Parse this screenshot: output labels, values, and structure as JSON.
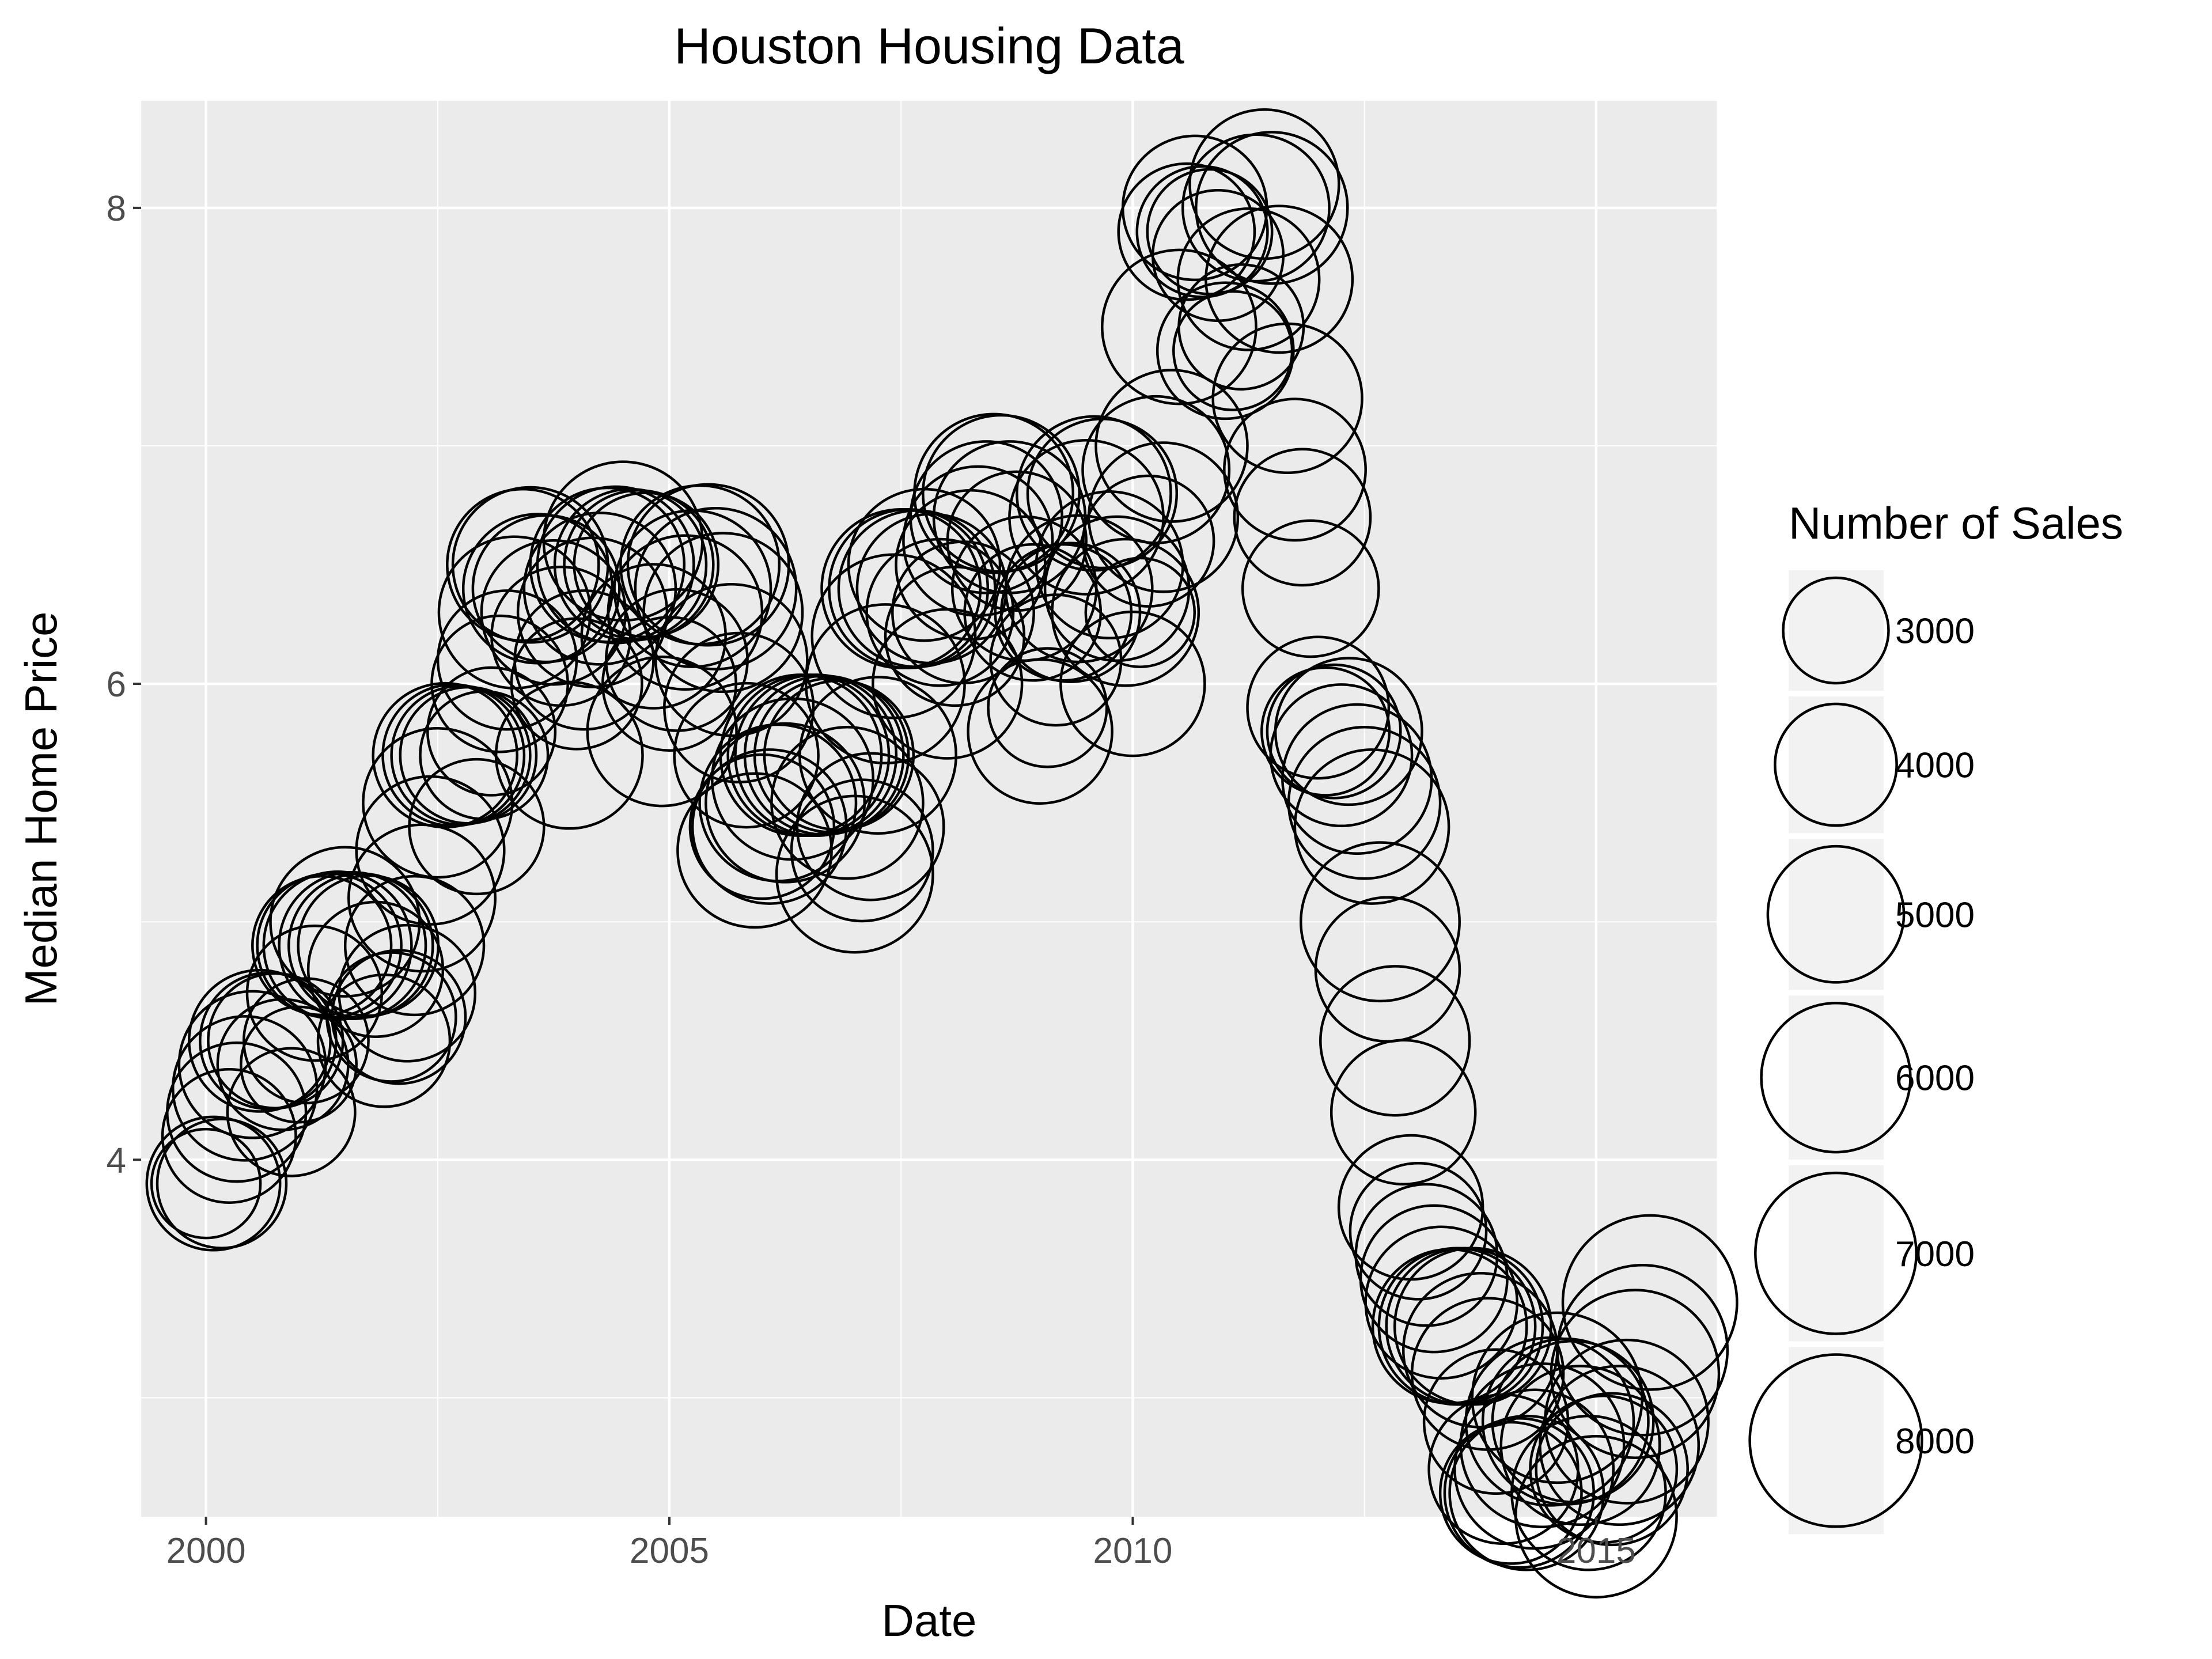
{
  "chart_data": {
    "type": "scatter",
    "title": "Houston Housing Data",
    "xlabel": "Date",
    "ylabel": "Median Home Price",
    "xlim": [
      1999.3,
      2016.3
    ],
    "ylim": [
      2.5,
      8.45
    ],
    "x_ticks": [
      2000,
      2005,
      2010,
      2015
    ],
    "x_tick_labels": [
      "2000",
      "2005",
      "2010",
      "2015"
    ],
    "y_ticks": [
      4,
      6,
      8
    ],
    "y_tick_labels": [
      "4",
      "6",
      "8"
    ],
    "grid": true,
    "panel_background": "#ebebeb",
    "grid_color": "#ffffff",
    "point_color": "#000000",
    "legend": {
      "title": "Number of Sales",
      "position": "right",
      "entries": [
        {
          "label": "3000",
          "value": 3000
        },
        {
          "label": "4000",
          "value": 4000
        },
        {
          "label": "5000",
          "value": 5000
        },
        {
          "label": "6000",
          "value": 6000
        },
        {
          "label": "7000",
          "value": 7000
        },
        {
          "label": "8000",
          "value": 8000
        }
      ]
    },
    "columns": [
      "date",
      "median_price",
      "sales"
    ],
    "points": [
      [
        2000.0,
        3.9,
        3200
      ],
      [
        2000.08,
        3.9,
        4800
      ],
      [
        2000.17,
        3.9,
        4500
      ],
      [
        2000.25,
        4.1,
        4800
      ],
      [
        2000.33,
        4.2,
        5200
      ],
      [
        2000.42,
        4.3,
        5600
      ],
      [
        2000.5,
        4.4,
        5800
      ],
      [
        2000.58,
        4.5,
        5400
      ],
      [
        2000.67,
        4.5,
        5000
      ],
      [
        2000.75,
        4.5,
        4900
      ],
      [
        2000.83,
        4.4,
        4600
      ],
      [
        2000.92,
        4.2,
        4400
      ],
      [
        2001.0,
        4.4,
        3600
      ],
      [
        2001.08,
        4.5,
        4200
      ],
      [
        2001.17,
        4.7,
        4900
      ],
      [
        2001.25,
        4.9,
        5200
      ],
      [
        2001.33,
        4.9,
        5600
      ],
      [
        2001.42,
        4.9,
        5900
      ],
      [
        2001.5,
        5.0,
        6000
      ],
      [
        2001.58,
        4.9,
        5800
      ],
      [
        2001.67,
        4.9,
        5600
      ],
      [
        2001.75,
        4.9,
        5300
      ],
      [
        2001.83,
        4.8,
        4900
      ],
      [
        2001.92,
        4.5,
        4700
      ],
      [
        2002.0,
        4.6,
        4500
      ],
      [
        2002.08,
        4.6,
        4800
      ],
      [
        2002.17,
        4.7,
        5000
      ],
      [
        2002.25,
        4.9,
        5200
      ],
      [
        2002.33,
        5.1,
        5800
      ],
      [
        2002.42,
        5.3,
        5900
      ],
      [
        2002.5,
        5.5,
        6000
      ],
      [
        2002.58,
        5.7,
        5600
      ],
      [
        2002.67,
        5.7,
        5400
      ],
      [
        2002.75,
        5.7,
        5200
      ],
      [
        2002.83,
        5.7,
        5000
      ],
      [
        2002.92,
        5.4,
        4900
      ],
      [
        2003.0,
        5.7,
        4400
      ],
      [
        2003.08,
        5.8,
        4400
      ],
      [
        2003.17,
        6.0,
        5000
      ],
      [
        2003.25,
        6.1,
        5200
      ],
      [
        2003.33,
        6.3,
        6200
      ],
      [
        2003.42,
        6.5,
        6200
      ],
      [
        2003.5,
        6.5,
        6500
      ],
      [
        2003.58,
        6.4,
        6000
      ],
      [
        2003.67,
        6.4,
        5800
      ],
      [
        2003.75,
        6.3,
        5600
      ],
      [
        2003.83,
        6.2,
        5200
      ],
      [
        2003.92,
        5.7,
        5800
      ],
      [
        2004.0,
        6.0,
        4600
      ],
      [
        2004.08,
        6.1,
        5200
      ],
      [
        2004.17,
        6.3,
        6000
      ],
      [
        2004.25,
        6.4,
        6200
      ],
      [
        2004.33,
        6.5,
        6400
      ],
      [
        2004.42,
        6.5,
        6600
      ],
      [
        2004.5,
        6.6,
        6800
      ],
      [
        2004.58,
        6.5,
        6200
      ],
      [
        2004.67,
        6.5,
        6000
      ],
      [
        2004.75,
        6.5,
        5600
      ],
      [
        2004.83,
        6.2,
        5600
      ],
      [
        2004.92,
        5.8,
        6000
      ],
      [
        2005.0,
        6.0,
        4800
      ],
      [
        2005.08,
        6.1,
        5400
      ],
      [
        2005.17,
        6.3,
        6400
      ],
      [
        2005.25,
        6.4,
        6600
      ],
      [
        2005.33,
        6.5,
        6800
      ],
      [
        2005.42,
        6.5,
        7000
      ],
      [
        2005.5,
        6.4,
        7000
      ],
      [
        2005.58,
        6.3,
        6800
      ],
      [
        2005.67,
        6.1,
        6200
      ],
      [
        2005.75,
        5.9,
        6000
      ],
      [
        2005.83,
        5.7,
        5600
      ],
      [
        2005.92,
        5.3,
        6400
      ],
      [
        2006.0,
        5.4,
        5600
      ],
      [
        2006.08,
        5.4,
        6400
      ],
      [
        2006.17,
        5.5,
        6600
      ],
      [
        2006.25,
        5.5,
        6800
      ],
      [
        2006.33,
        5.6,
        7000
      ],
      [
        2006.42,
        5.7,
        7000
      ],
      [
        2006.5,
        5.7,
        7000
      ],
      [
        2006.58,
        5.7,
        7000
      ],
      [
        2006.67,
        5.7,
        6800
      ],
      [
        2006.75,
        5.7,
        6400
      ],
      [
        2006.83,
        5.7,
        6000
      ],
      [
        2006.92,
        5.5,
        6200
      ],
      [
        2007.0,
        5.2,
        6600
      ],
      [
        2007.08,
        5.3,
        5400
      ],
      [
        2007.17,
        5.4,
        5800
      ],
      [
        2007.25,
        5.7,
        6600
      ],
      [
        2007.33,
        6.0,
        6800
      ],
      [
        2007.42,
        6.2,
        7200
      ],
      [
        2007.5,
        6.4,
        6800
      ],
      [
        2007.58,
        6.4,
        6800
      ],
      [
        2007.67,
        6.4,
        6600
      ],
      [
        2007.75,
        6.5,
        6200
      ],
      [
        2007.83,
        6.4,
        6000
      ],
      [
        2007.92,
        6.3,
        5800
      ],
      [
        2008.0,
        6.0,
        6000
      ],
      [
        2008.08,
        6.2,
        5200
      ],
      [
        2008.17,
        6.3,
        5400
      ],
      [
        2008.25,
        6.5,
        6000
      ],
      [
        2008.33,
        6.6,
        6000
      ],
      [
        2008.42,
        6.7,
        6200
      ],
      [
        2008.5,
        6.8,
        6800
      ],
      [
        2008.58,
        6.8,
        6600
      ],
      [
        2008.67,
        6.7,
        6200
      ],
      [
        2008.75,
        6.6,
        5200
      ],
      [
        2008.83,
        6.4,
        5600
      ],
      [
        2008.92,
        6.3,
        5000
      ],
      [
        2009.0,
        5.8,
        5600
      ],
      [
        2009.08,
        5.9,
        3800
      ],
      [
        2009.17,
        6.1,
        4600
      ],
      [
        2009.25,
        6.3,
        5000
      ],
      [
        2009.33,
        6.3,
        5200
      ],
      [
        2009.42,
        6.4,
        5800
      ],
      [
        2009.5,
        6.7,
        6400
      ],
      [
        2009.58,
        6.8,
        6400
      ],
      [
        2009.67,
        6.8,
        6000
      ],
      [
        2009.75,
        6.5,
        5800
      ],
      [
        2009.83,
        6.4,
        5600
      ],
      [
        2009.92,
        6.3,
        5800
      ],
      [
        2010.0,
        6.0,
        5600
      ],
      [
        2010.08,
        6.3,
        3200
      ],
      [
        2010.17,
        6.6,
        4600
      ],
      [
        2010.25,
        6.9,
        5800
      ],
      [
        2010.33,
        6.7,
        6000
      ],
      [
        2010.42,
        7.0,
        6200
      ],
      [
        2010.5,
        7.5,
        6400
      ],
      [
        2010.58,
        7.9,
        5000
      ],
      [
        2010.67,
        8.0,
        5600
      ],
      [
        2010.75,
        7.9,
        4600
      ],
      [
        2010.83,
        7.9,
        4200
      ],
      [
        2010.92,
        7.8,
        4600
      ],
      [
        2011.0,
        7.4,
        5000
      ],
      [
        2011.08,
        7.4,
        3800
      ],
      [
        2011.17,
        7.5,
        4200
      ],
      [
        2011.25,
        7.7,
        5400
      ],
      [
        2011.33,
        8.0,
        5800
      ],
      [
        2011.42,
        8.1,
        6000
      ],
      [
        2011.5,
        8.0,
        6200
      ],
      [
        2011.58,
        7.7,
        5800
      ],
      [
        2011.67,
        7.2,
        6000
      ],
      [
        2011.75,
        6.9,
        5400
      ],
      [
        2011.83,
        6.7,
        5000
      ],
      [
        2011.92,
        6.4,
        5000
      ],
      [
        2012.0,
        5.9,
        5400
      ],
      [
        2012.08,
        5.8,
        4400
      ],
      [
        2012.17,
        5.8,
        4800
      ],
      [
        2012.25,
        5.7,
        5400
      ],
      [
        2012.33,
        5.8,
        5800
      ],
      [
        2012.42,
        5.6,
        6000
      ],
      [
        2012.5,
        5.5,
        6200
      ],
      [
        2012.58,
        5.4,
        6400
      ],
      [
        2012.67,
        5.0,
        6800
      ],
      [
        2012.75,
        4.8,
        5600
      ],
      [
        2012.83,
        4.5,
        6000
      ],
      [
        2012.92,
        4.2,
        5600
      ],
      [
        2013.0,
        3.8,
        5600
      ],
      [
        2013.08,
        3.7,
        5000
      ],
      [
        2013.17,
        3.6,
        5400
      ],
      [
        2013.25,
        3.5,
        5800
      ],
      [
        2013.33,
        3.4,
        6200
      ],
      [
        2013.42,
        3.3,
        6400
      ],
      [
        2013.5,
        3.3,
        6600
      ],
      [
        2013.58,
        3.3,
        6600
      ],
      [
        2013.67,
        3.3,
        6600
      ],
      [
        2013.75,
        3.2,
        6400
      ],
      [
        2013.83,
        3.1,
        6200
      ],
      [
        2013.92,
        2.9,
        5600
      ],
      [
        2014.0,
        2.7,
        6000
      ],
      [
        2014.08,
        2.6,
        5400
      ],
      [
        2014.17,
        2.6,
        6000
      ],
      [
        2014.25,
        2.6,
        6400
      ],
      [
        2014.33,
        2.7,
        6800
      ],
      [
        2014.42,
        2.8,
        7200
      ],
      [
        2014.5,
        2.9,
        7600
      ],
      [
        2014.58,
        3.0,
        7800
      ],
      [
        2014.67,
        2.9,
        7400
      ],
      [
        2014.75,
        2.9,
        7000
      ],
      [
        2014.83,
        2.8,
        6800
      ],
      [
        2014.92,
        2.6,
        6400
      ],
      [
        2015.0,
        2.5,
        7000
      ],
      [
        2015.08,
        2.7,
        5800
      ],
      [
        2015.17,
        2.7,
        6200
      ],
      [
        2015.25,
        2.8,
        6800
      ],
      [
        2015.33,
        2.9,
        7200
      ],
      [
        2015.42,
        3.1,
        7600
      ],
      [
        2015.5,
        3.2,
        7800
      ],
      [
        2015.58,
        3.4,
        8200
      ]
    ]
  }
}
